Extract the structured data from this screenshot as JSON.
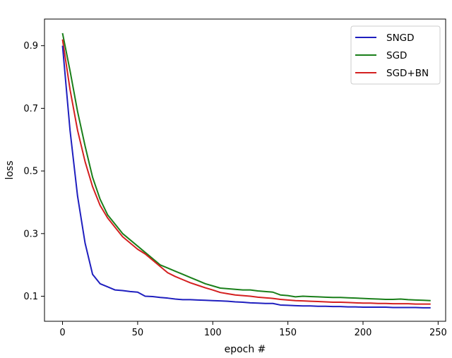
{
  "chart_data": {
    "type": "line",
    "xlabel": "epoch #",
    "ylabel": "loss",
    "xlim": [
      -12,
      255
    ],
    "ylim": [
      0.02,
      0.985
    ],
    "xticks": [
      0,
      50,
      100,
      150,
      200,
      250
    ],
    "yticks": [
      0.1,
      0.3,
      0.5,
      0.7,
      0.9
    ],
    "xtick_labels": [
      "0",
      "50",
      "100",
      "150",
      "200",
      "250"
    ],
    "ytick_labels": [
      "0.1",
      "0.3",
      "0.5",
      "0.7",
      "0.9"
    ],
    "grid": false,
    "legend_position": "top-right",
    "series": [
      {
        "name": "SNGD",
        "color": "#1f1fbf",
        "x": [
          0,
          5,
          10,
          15,
          20,
          25,
          30,
          35,
          40,
          45,
          50,
          55,
          60,
          65,
          70,
          75,
          80,
          85,
          90,
          95,
          100,
          105,
          110,
          115,
          120,
          125,
          130,
          135,
          140,
          145,
          150,
          155,
          160,
          165,
          170,
          175,
          180,
          185,
          190,
          195,
          200,
          205,
          210,
          215,
          220,
          225,
          230,
          235,
          240,
          245
        ],
        "values": [
          0.9,
          0.63,
          0.42,
          0.27,
          0.17,
          0.14,
          0.13,
          0.12,
          0.118,
          0.115,
          0.113,
          0.1,
          0.099,
          0.096,
          0.094,
          0.091,
          0.089,
          0.089,
          0.088,
          0.087,
          0.086,
          0.085,
          0.084,
          0.082,
          0.081,
          0.079,
          0.078,
          0.077,
          0.077,
          0.072,
          0.071,
          0.07,
          0.069,
          0.069,
          0.068,
          0.068,
          0.067,
          0.067,
          0.066,
          0.066,
          0.065,
          0.065,
          0.065,
          0.065,
          0.064,
          0.064,
          0.064,
          0.064,
          0.063,
          0.063
        ]
      },
      {
        "name": "SGD",
        "color": "#1a7f1a",
        "x": [
          0,
          5,
          10,
          15,
          20,
          25,
          30,
          35,
          40,
          45,
          50,
          55,
          60,
          65,
          70,
          75,
          80,
          85,
          90,
          95,
          100,
          105,
          110,
          115,
          120,
          125,
          130,
          135,
          140,
          145,
          150,
          155,
          160,
          165,
          170,
          175,
          180,
          185,
          190,
          195,
          200,
          205,
          210,
          215,
          220,
          225,
          230,
          235,
          240,
          245
        ],
        "values": [
          0.94,
          0.82,
          0.69,
          0.58,
          0.48,
          0.41,
          0.36,
          0.33,
          0.3,
          0.28,
          0.26,
          0.24,
          0.22,
          0.2,
          0.19,
          0.18,
          0.17,
          0.16,
          0.15,
          0.14,
          0.133,
          0.126,
          0.124,
          0.122,
          0.12,
          0.12,
          0.117,
          0.115,
          0.113,
          0.104,
          0.102,
          0.098,
          0.1,
          0.099,
          0.098,
          0.097,
          0.096,
          0.096,
          0.095,
          0.094,
          0.093,
          0.092,
          0.091,
          0.09,
          0.09,
          0.091,
          0.089,
          0.088,
          0.087,
          0.086
        ]
      },
      {
        "name": "SGD+BN",
        "color": "#d42020",
        "x": [
          0,
          5,
          10,
          15,
          20,
          25,
          30,
          35,
          40,
          45,
          50,
          55,
          60,
          65,
          70,
          75,
          80,
          85,
          90,
          95,
          100,
          105,
          110,
          115,
          120,
          125,
          130,
          135,
          140,
          145,
          150,
          155,
          160,
          165,
          170,
          175,
          180,
          185,
          190,
          195,
          200,
          205,
          210,
          215,
          220,
          225,
          230,
          235,
          240,
          245
        ],
        "values": [
          0.92,
          0.76,
          0.63,
          0.53,
          0.45,
          0.39,
          0.35,
          0.32,
          0.29,
          0.27,
          0.25,
          0.235,
          0.215,
          0.195,
          0.175,
          0.163,
          0.153,
          0.143,
          0.135,
          0.127,
          0.12,
          0.112,
          0.108,
          0.104,
          0.102,
          0.1,
          0.097,
          0.095,
          0.093,
          0.09,
          0.088,
          0.086,
          0.085,
          0.084,
          0.083,
          0.082,
          0.081,
          0.081,
          0.08,
          0.079,
          0.078,
          0.078,
          0.077,
          0.077,
          0.076,
          0.076,
          0.076,
          0.075,
          0.075,
          0.075
        ]
      }
    ]
  }
}
